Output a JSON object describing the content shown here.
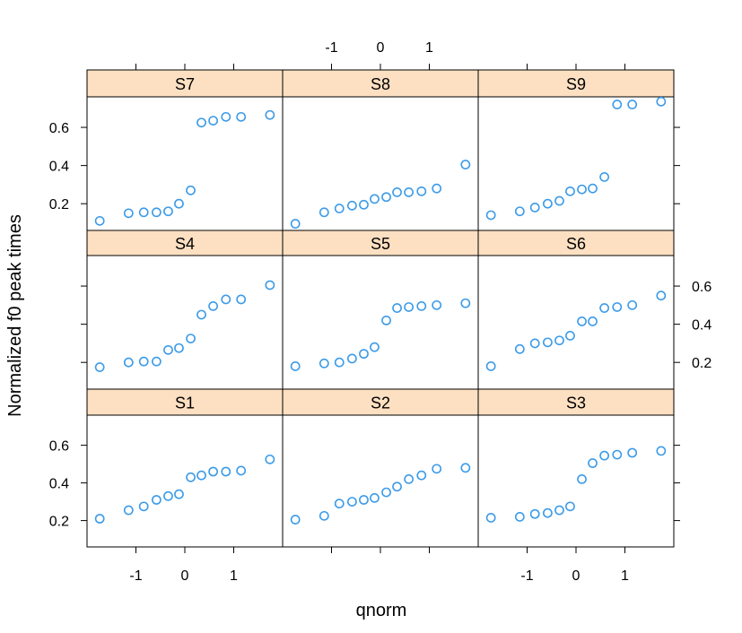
{
  "chart_data": {
    "type": "scatter",
    "xlabel": "qnorm",
    "ylabel": "Normalized f0 peak times",
    "x_ticks": [
      "-1",
      "0",
      "1"
    ],
    "y_ticks": [
      "0.2",
      "0.4",
      "0.6"
    ],
    "xlim": [
      -2.0,
      2.0
    ],
    "ylim": [
      0.06,
      0.76
    ],
    "grid": false,
    "layout": "3x3 trellis panels",
    "colors": {
      "point": "#3c9be8",
      "strip": "#fde0c2",
      "frame": "#000000"
    },
    "panels": [
      {
        "name": "S7",
        "x": [
          -1.74,
          -1.15,
          -0.84,
          -0.58,
          -0.34,
          -0.12,
          0.12,
          0.34,
          0.58,
          0.84,
          1.15,
          1.74
        ],
        "y": [
          0.11,
          0.15,
          0.155,
          0.155,
          0.16,
          0.2,
          0.27,
          0.625,
          0.635,
          0.655,
          0.655,
          0.665
        ]
      },
      {
        "name": "S8",
        "x": [
          -1.74,
          -1.15,
          -0.84,
          -0.58,
          -0.34,
          -0.12,
          0.12,
          0.34,
          0.58,
          0.84,
          1.15,
          1.74
        ],
        "y": [
          0.095,
          0.155,
          0.175,
          0.19,
          0.195,
          0.225,
          0.235,
          0.26,
          0.26,
          0.265,
          0.28,
          0.405
        ]
      },
      {
        "name": "S9",
        "x": [
          -1.74,
          -1.15,
          -0.84,
          -0.58,
          -0.34,
          -0.12,
          0.12,
          0.34,
          0.58,
          0.84,
          1.15,
          1.74
        ],
        "y": [
          0.14,
          0.16,
          0.18,
          0.2,
          0.215,
          0.265,
          0.275,
          0.28,
          0.34,
          0.72,
          0.72,
          0.735
        ]
      },
      {
        "name": "S4",
        "x": [
          -1.74,
          -1.15,
          -0.84,
          -0.58,
          -0.34,
          -0.12,
          0.12,
          0.34,
          0.58,
          0.84,
          1.15,
          1.74
        ],
        "y": [
          0.175,
          0.2,
          0.205,
          0.205,
          0.265,
          0.275,
          0.325,
          0.45,
          0.495,
          0.53,
          0.53,
          0.605
        ]
      },
      {
        "name": "S5",
        "x": [
          -1.74,
          -1.15,
          -0.84,
          -0.58,
          -0.34,
          -0.12,
          0.12,
          0.34,
          0.58,
          0.84,
          1.15,
          1.74
        ],
        "y": [
          0.18,
          0.195,
          0.2,
          0.22,
          0.245,
          0.28,
          0.42,
          0.485,
          0.49,
          0.495,
          0.5,
          0.51
        ]
      },
      {
        "name": "S6",
        "x": [
          -1.74,
          -1.15,
          -0.84,
          -0.58,
          -0.34,
          -0.12,
          0.12,
          0.34,
          0.58,
          0.84,
          1.15,
          1.74
        ],
        "y": [
          0.18,
          0.27,
          0.3,
          0.305,
          0.315,
          0.34,
          0.415,
          0.415,
          0.485,
          0.49,
          0.5,
          0.55
        ]
      },
      {
        "name": "S1",
        "x": [
          -1.74,
          -1.15,
          -0.84,
          -0.58,
          -0.34,
          -0.12,
          0.12,
          0.34,
          0.58,
          0.84,
          1.15,
          1.74
        ],
        "y": [
          0.21,
          0.255,
          0.275,
          0.31,
          0.33,
          0.34,
          0.43,
          0.44,
          0.46,
          0.46,
          0.465,
          0.525
        ]
      },
      {
        "name": "S2",
        "x": [
          -1.74,
          -1.15,
          -0.84,
          -0.58,
          -0.34,
          -0.12,
          0.12,
          0.34,
          0.58,
          0.84,
          1.15,
          1.74
        ],
        "y": [
          0.205,
          0.225,
          0.29,
          0.3,
          0.31,
          0.32,
          0.35,
          0.38,
          0.42,
          0.44,
          0.475,
          0.48
        ]
      },
      {
        "name": "S3",
        "x": [
          -1.74,
          -1.15,
          -0.84,
          -0.58,
          -0.34,
          -0.12,
          0.12,
          0.34,
          0.58,
          0.84,
          1.15,
          1.74
        ],
        "y": [
          0.215,
          0.22,
          0.235,
          0.24,
          0.255,
          0.275,
          0.42,
          0.505,
          0.545,
          0.55,
          0.56,
          0.57
        ]
      }
    ]
  }
}
